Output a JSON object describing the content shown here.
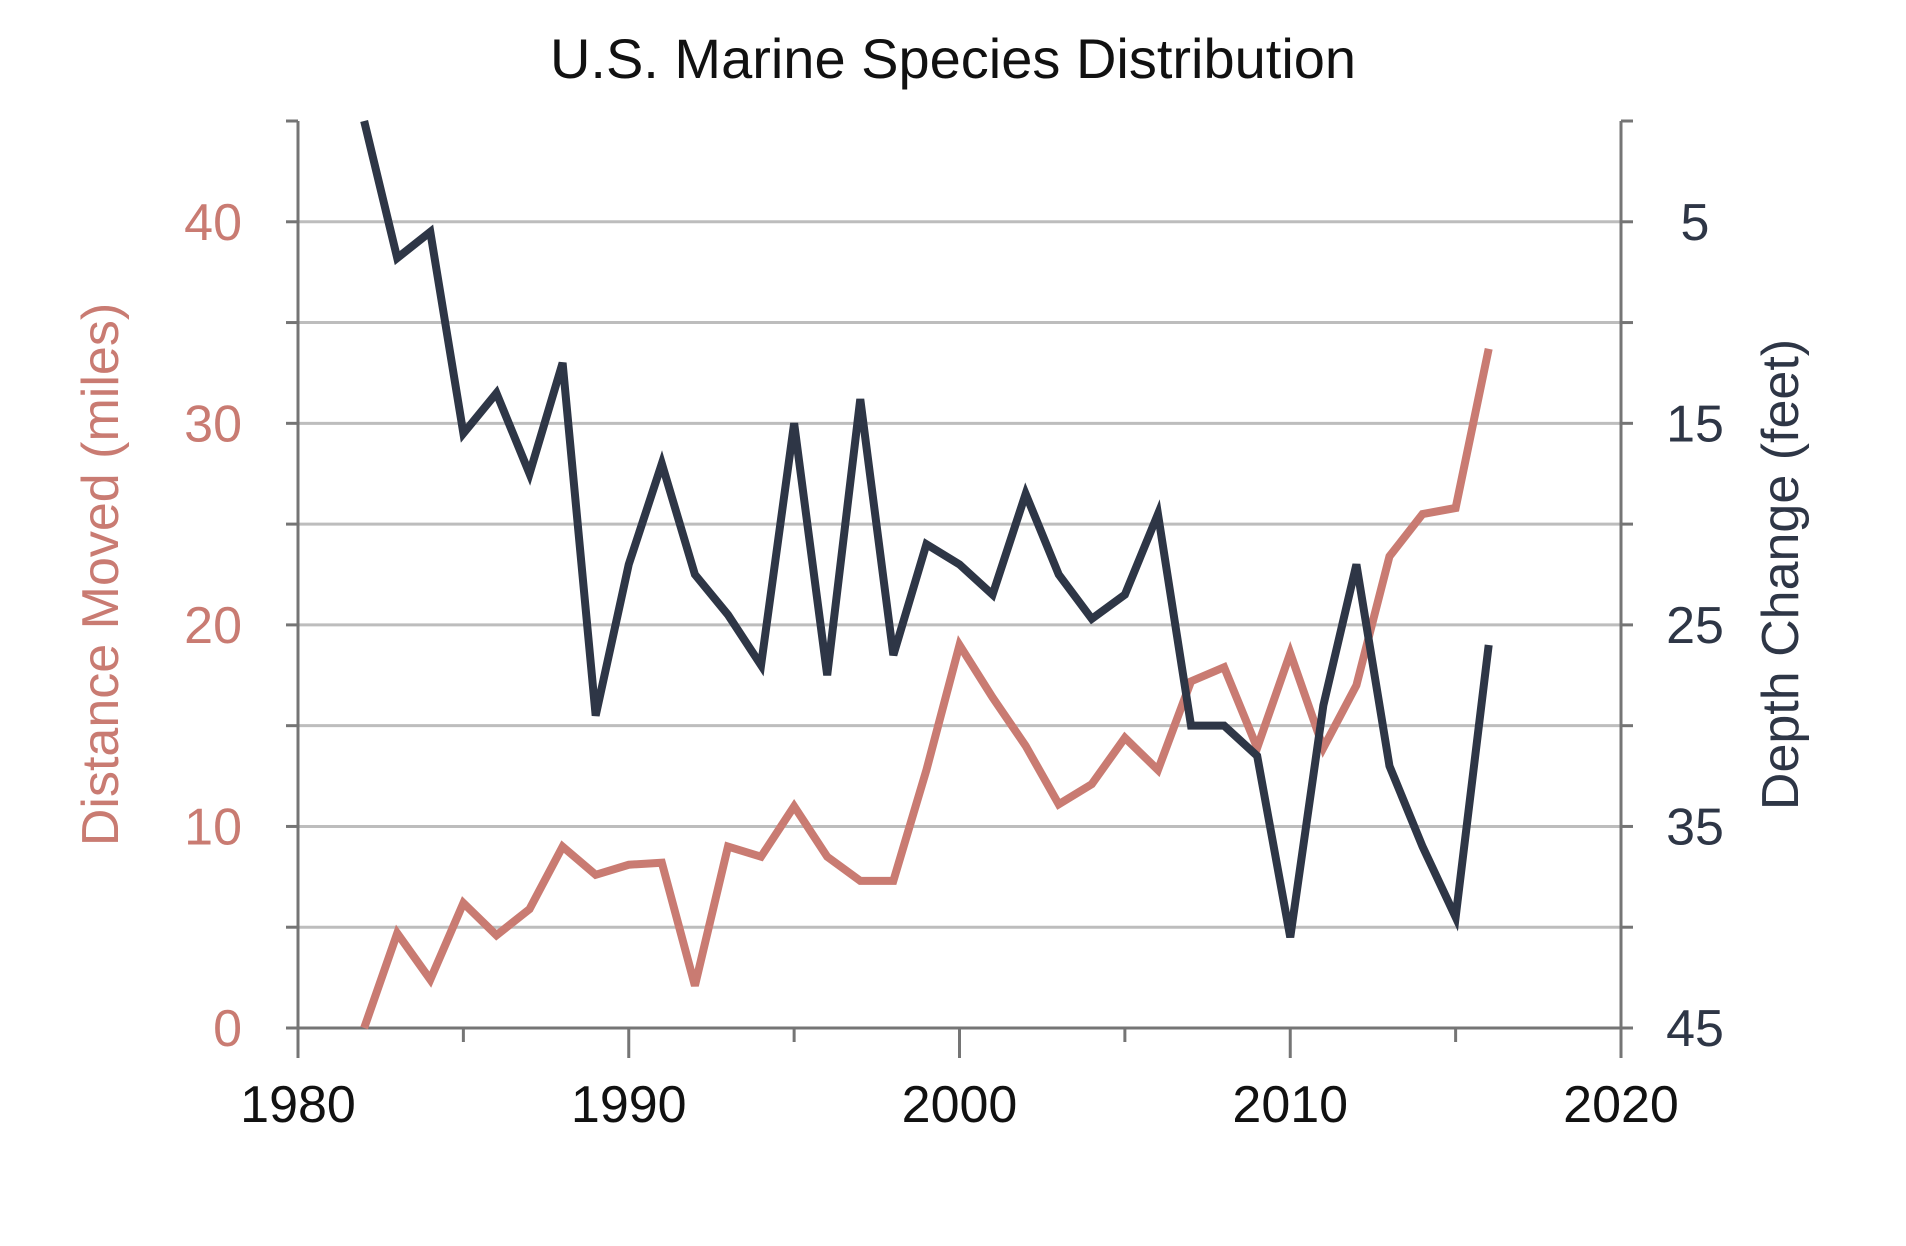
{
  "chart_data": {
    "type": "line",
    "title": "U.S. Marine Species Distribution",
    "xlabel": "",
    "ylabel": "Distance Moved (miles)",
    "y2label": "Depth Change (feet)",
    "xlim": [
      1980,
      2020
    ],
    "ylim": [
      0,
      45
    ],
    "y2lim": [
      45,
      0
    ],
    "y2_inverted": true,
    "x_ticks": [
      1980,
      1990,
      2000,
      2010,
      2020
    ],
    "y_ticks": [
      0,
      10,
      20,
      30,
      40
    ],
    "y2_ticks": [
      5,
      15,
      25,
      35,
      45
    ],
    "grid": true,
    "legend": "none",
    "colors": {
      "distance": "#C97B72",
      "depth": "#2E3646",
      "axis": "#757575",
      "grid": "#BDBDBD",
      "text": "#111111"
    },
    "series": [
      {
        "key": "distance",
        "axis": "left",
        "x": [
          1982,
          1983,
          1984,
          1985,
          1986,
          1987,
          1988,
          1989,
          1990,
          1991,
          1992,
          1993,
          1994,
          1995,
          1996,
          1997,
          1998,
          1999,
          2000,
          2001,
          2002,
          2003,
          2004,
          2005,
          2006,
          2007,
          2008,
          2009,
          2010,
          2011,
          2012,
          2013,
          2014,
          2015,
          2016
        ],
        "values": [
          0.0,
          4.7,
          2.4,
          6.2,
          4.6,
          5.9,
          9.0,
          7.6,
          8.1,
          8.2,
          2.1,
          9.0,
          8.5,
          11.0,
          8.5,
          7.3,
          7.3,
          12.8,
          19.0,
          16.4,
          14.0,
          11.1,
          12.1,
          14.4,
          12.8,
          17.2,
          17.9,
          13.9,
          18.6,
          13.9,
          17.0,
          23.4,
          25.5,
          25.8,
          33.7
        ]
      },
      {
        "key": "depth",
        "axis": "right",
        "x": [
          1982,
          1983,
          1984,
          1985,
          1986,
          1987,
          1988,
          1989,
          1990,
          1991,
          1992,
          1993,
          1994,
          1995,
          1996,
          1997,
          1998,
          1999,
          2000,
          2001,
          2002,
          2003,
          2004,
          2005,
          2006,
          2007,
          2008,
          2009,
          2010,
          2011,
          2012,
          2013,
          2014,
          2015,
          2016
        ],
        "values": [
          0.0,
          6.8,
          5.5,
          15.5,
          13.5,
          17.5,
          12.0,
          29.5,
          22.0,
          17.0,
          22.5,
          24.5,
          27.0,
          15.0,
          27.5,
          13.8,
          26.5,
          21.0,
          22.0,
          23.5,
          18.5,
          22.5,
          24.7,
          23.5,
          19.5,
          30.0,
          30.0,
          31.5,
          40.5,
          29.0,
          22.0,
          32.0,
          36.0,
          39.5,
          26.0
        ]
      }
    ]
  }
}
